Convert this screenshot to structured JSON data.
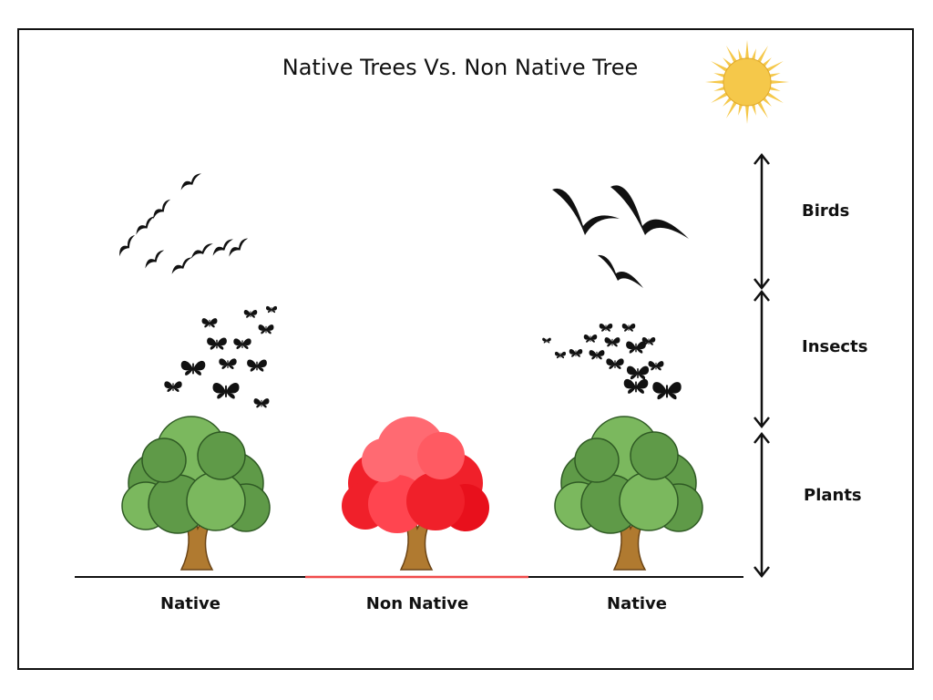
{
  "title": "Native Trees Vs. Non Native Tree",
  "layers": [
    {
      "key": "birds",
      "label": "Birds"
    },
    {
      "key": "insects",
      "label": "Insects"
    },
    {
      "key": "plants",
      "label": "Plants"
    }
  ],
  "trees": [
    {
      "label": "Native",
      "foliage": "green"
    },
    {
      "label": "Non Native",
      "foliage": "red"
    },
    {
      "label": "Native",
      "foliage": "green"
    }
  ],
  "icons": [
    "sun-icon",
    "birds-flock-icon",
    "butterflies-icon",
    "tree-icon",
    "double-arrow-icon"
  ],
  "colors": {
    "native_foliage": "#5f9a48",
    "native_foliage_light": "#7bb85e",
    "non_native_foliage": "#f0202a",
    "non_native_foliage_light": "#ff6a72",
    "trunk": "#b07a30",
    "sun": "#f5c84a",
    "non_native_ground": "#f04b4b"
  }
}
